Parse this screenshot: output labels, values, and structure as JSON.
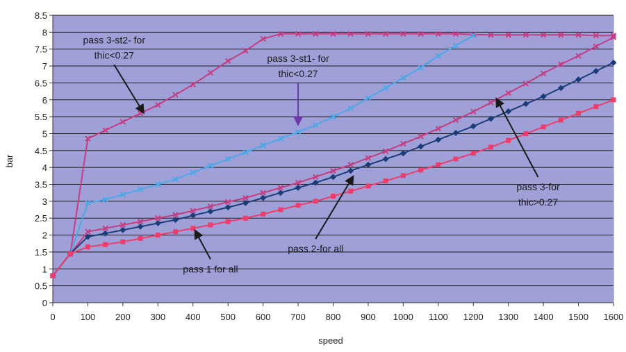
{
  "chart_data": {
    "type": "line",
    "title": "",
    "xlabel": "speed",
    "ylabel": "bar",
    "xlim": [
      0,
      1600
    ],
    "ylim": [
      0,
      8.5
    ],
    "x_ticks": [
      0,
      100,
      200,
      300,
      400,
      500,
      600,
      700,
      800,
      900,
      1000,
      1100,
      1200,
      1300,
      1400,
      1500,
      1600
    ],
    "y_ticks": [
      0,
      0.5,
      1,
      1.5,
      2,
      2.5,
      3,
      3.5,
      4,
      4.5,
      5,
      5.5,
      6,
      6.5,
      7,
      7.5,
      8,
      8.5
    ],
    "grid": "horizontal",
    "plot_background": "#a0a0d8",
    "series": [
      {
        "name": "pass 3-st2- for thic<0.27",
        "color": "#c43d83",
        "marker": "x",
        "x": [
          0,
          50,
          100,
          150,
          200,
          250,
          300,
          350,
          400,
          450,
          500,
          550,
          600,
          650,
          700,
          750,
          800,
          850,
          900,
          950,
          1000,
          1050,
          1100,
          1150,
          1200,
          1250,
          1300,
          1350,
          1400,
          1450,
          1500,
          1550,
          1600
        ],
        "y": [
          0.8,
          1.45,
          4.85,
          5.1,
          5.35,
          5.6,
          5.85,
          6.15,
          6.45,
          6.8,
          7.15,
          7.45,
          7.8,
          7.95,
          7.95,
          7.95,
          7.95,
          7.95,
          7.95,
          7.95,
          7.95,
          7.95,
          7.95,
          7.95,
          7.93,
          7.92,
          7.92,
          7.92,
          7.92,
          7.92,
          7.92,
          7.9,
          7.9
        ]
      },
      {
        "name": "pass 3-st1- for thic<0.27",
        "color": "#4aa8e8",
        "marker": "x",
        "x": [
          0,
          50,
          100,
          150,
          200,
          250,
          300,
          350,
          400,
          450,
          500,
          550,
          600,
          650,
          700,
          750,
          800,
          850,
          900,
          950,
          1000,
          1050,
          1100,
          1150,
          1200
        ],
        "y": [
          0.8,
          1.45,
          2.95,
          3.05,
          3.2,
          3.35,
          3.5,
          3.65,
          3.85,
          4.05,
          4.25,
          4.45,
          4.65,
          4.85,
          5.05,
          5.25,
          5.5,
          5.75,
          6.05,
          6.35,
          6.65,
          6.95,
          7.3,
          7.6,
          7.9
        ]
      },
      {
        "name": "pass 3-for thic>0.27",
        "color": "#c43d83",
        "marker": "x",
        "x": [
          0,
          50,
          100,
          150,
          200,
          250,
          300,
          350,
          400,
          450,
          500,
          550,
          600,
          650,
          700,
          750,
          800,
          850,
          900,
          950,
          1000,
          1050,
          1100,
          1150,
          1200,
          1250,
          1300,
          1350,
          1400,
          1450,
          1500,
          1550,
          1600
        ],
        "y": [
          0.8,
          1.45,
          2.1,
          2.2,
          2.3,
          2.4,
          2.5,
          2.6,
          2.72,
          2.85,
          2.98,
          3.1,
          3.25,
          3.4,
          3.55,
          3.72,
          3.9,
          4.08,
          4.28,
          4.48,
          4.7,
          4.92,
          5.15,
          5.4,
          5.65,
          5.92,
          6.2,
          6.48,
          6.78,
          7.05,
          7.3,
          7.58,
          7.85
        ]
      },
      {
        "name": "pass 2-for all",
        "color": "#1a3d7a",
        "marker": "diamond",
        "x": [
          0,
          50,
          100,
          150,
          200,
          250,
          300,
          350,
          400,
          450,
          500,
          550,
          600,
          650,
          700,
          750,
          800,
          850,
          900,
          950,
          1000,
          1050,
          1100,
          1150,
          1200,
          1250,
          1300,
          1350,
          1400,
          1450,
          1500,
          1550,
          1600
        ],
        "y": [
          0.8,
          1.45,
          1.95,
          2.05,
          2.15,
          2.25,
          2.35,
          2.45,
          2.58,
          2.7,
          2.82,
          2.95,
          3.1,
          3.25,
          3.4,
          3.55,
          3.72,
          3.9,
          4.08,
          4.25,
          4.42,
          4.62,
          4.82,
          5.02,
          5.22,
          5.44,
          5.66,
          5.88,
          6.1,
          6.35,
          6.6,
          6.85,
          7.1
        ]
      },
      {
        "name": "pass 1 for all",
        "color": "#ee3c6c",
        "marker": "square",
        "x": [
          0,
          50,
          100,
          150,
          200,
          250,
          300,
          350,
          400,
          450,
          500,
          550,
          600,
          650,
          700,
          750,
          800,
          850,
          900,
          950,
          1000,
          1050,
          1100,
          1150,
          1200,
          1250,
          1300,
          1350,
          1400,
          1450,
          1500,
          1550,
          1600
        ],
        "y": [
          0.8,
          1.45,
          1.65,
          1.72,
          1.8,
          1.9,
          2.0,
          2.1,
          2.2,
          2.3,
          2.4,
          2.5,
          2.62,
          2.75,
          2.88,
          3.0,
          3.15,
          3.3,
          3.45,
          3.6,
          3.76,
          3.92,
          4.08,
          4.25,
          4.42,
          4.6,
          4.8,
          5.0,
          5.2,
          5.4,
          5.6,
          5.8,
          6.0
        ]
      }
    ],
    "annotations": [
      {
        "lines": [
          "pass 3-st2- for",
          "thic<0.27"
        ],
        "target_x": 260,
        "target_y": 5.6,
        "text_x": 175,
        "text_y": 7.55,
        "arrow_color": "#1a1a1a"
      },
      {
        "lines": [
          "pass 3-st1- for",
          "thic<0.27"
        ],
        "target_x": 700,
        "target_y": 5.25,
        "text_x": 700,
        "text_y": 7.0,
        "arrow_color": "#6a3aa8"
      },
      {
        "lines": [
          "pass 3-for",
          "thic>0.27"
        ],
        "target_x": 1265,
        "target_y": 6.05,
        "text_x": 1385,
        "text_y": 3.2,
        "arrow_color": "#1a1a1a"
      },
      {
        "lines": [
          "pass 2-for all"
        ],
        "target_x": 858,
        "target_y": 3.75,
        "text_x": 750,
        "text_y": 1.6,
        "arrow_color": "#1a1a1a"
      },
      {
        "lines": [
          "pass 1 for all"
        ],
        "target_x": 405,
        "target_y": 2.15,
        "text_x": 450,
        "text_y": 1.0,
        "arrow_color": "#1a1a1a"
      }
    ]
  }
}
